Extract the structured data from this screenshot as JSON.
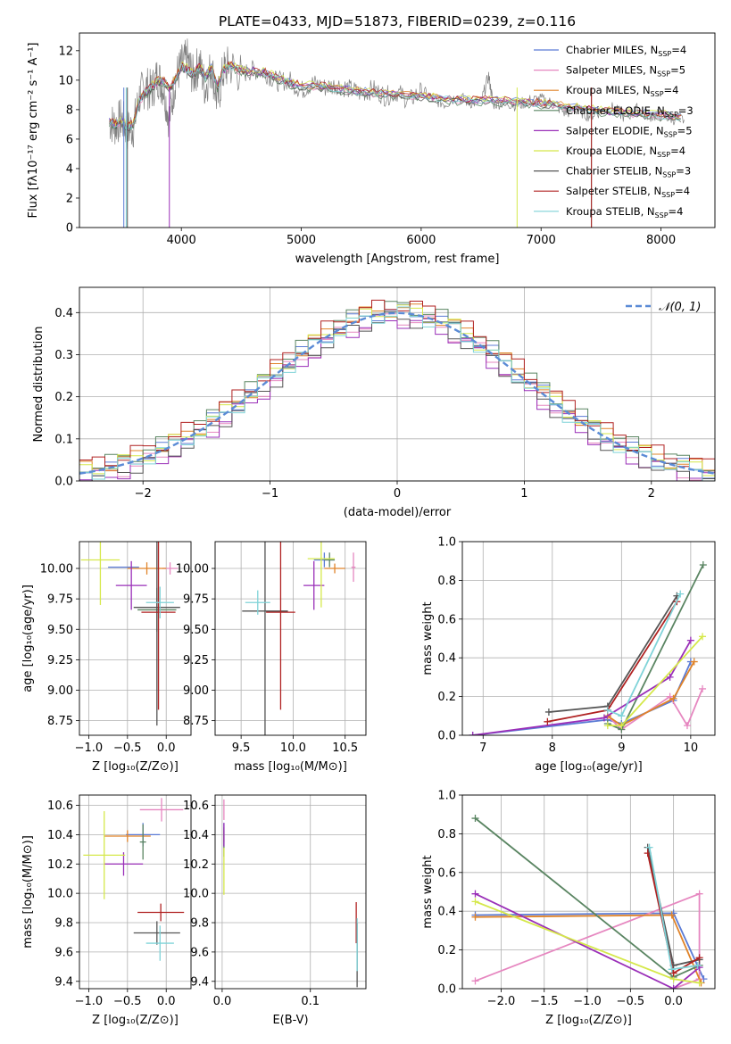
{
  "figure_title": "PLATE=0433, MJD=51873, FIBERID=0239, z=0.116",
  "chart_data": [
    {
      "id": "spectrum",
      "type": "line",
      "xlabel": "wavelength [Angstrom, rest frame]",
      "ylabel": "Flux [fλ10⁻¹⁷ erg cm⁻² s⁻¹ A⁻¹]",
      "xlim": [
        3150,
        8450
      ],
      "ylim": [
        0,
        13.2
      ],
      "xticks": [
        4000,
        5000,
        6000,
        7000,
        8000
      ],
      "yticks": [
        0,
        2,
        4,
        6,
        8,
        10,
        12
      ],
      "grid": false,
      "legend_position": "top-right",
      "observed": {
        "x": [
          3400,
          3450,
          3500,
          3550,
          3600,
          3650,
          3700,
          3750,
          3800,
          3850,
          3900,
          3950,
          4000,
          4050,
          4100,
          4150,
          4200,
          4250,
          4300,
          4350,
          4400,
          4500,
          4600,
          4700,
          4800,
          4900,
          5000,
          5100,
          5200,
          5300,
          5400,
          5500,
          5600,
          5700,
          5800,
          5900,
          6000,
          6100,
          6200,
          6300,
          6400,
          6500,
          6563,
          6600,
          6700,
          6800,
          6900,
          7000,
          7100,
          7200,
          7300,
          7400,
          7500,
          7600,
          7700,
          7800,
          7900,
          8000,
          8100,
          8200
        ],
        "y": [
          7.2,
          6.9,
          7.4,
          6.6,
          6.8,
          8.9,
          9.6,
          9.2,
          10.3,
          9.5,
          7.3,
          10.1,
          11.0,
          11.4,
          10.2,
          11.2,
          9.4,
          11.0,
          8.5,
          10.6,
          11.0,
          10.4,
          10.7,
          10.5,
          9.9,
          10.0,
          9.3,
          9.8,
          9.5,
          9.7,
          9.4,
          9.1,
          9.4,
          8.9,
          9.2,
          8.6,
          9.3,
          8.7,
          8.4,
          8.9,
          8.5,
          8.5,
          10.3,
          8.4,
          8.5,
          8.3,
          8.6,
          8.7,
          8.4,
          7.8,
          8.0,
          7.6,
          7.9,
          8.1,
          7.5,
          8.0,
          7.6,
          7.6,
          7.4,
          7.3
        ]
      },
      "model_smooth": {
        "x": [
          3400,
          3450,
          3500,
          3550,
          3600,
          3650,
          3700,
          3750,
          3800,
          3850,
          3900,
          3950,
          4000,
          4050,
          4100,
          4150,
          4200,
          4250,
          4300,
          4350,
          4400,
          4500,
          4600,
          4700,
          4800,
          4900,
          5000,
          5200,
          5400,
          5600,
          5800,
          6000,
          6200,
          6400,
          6600,
          6800,
          7000,
          7200,
          7400,
          7600,
          7800,
          8000,
          8200
        ],
        "y": [
          7.1,
          7.0,
          7.2,
          6.8,
          7.0,
          8.6,
          9.1,
          9.5,
          9.9,
          9.9,
          9.4,
          10.0,
          10.9,
          10.7,
          10.4,
          10.9,
          10.2,
          10.8,
          9.5,
          10.6,
          11.0,
          10.6,
          10.6,
          10.5,
          10.1,
          9.8,
          9.6,
          9.5,
          9.3,
          9.1,
          9.0,
          8.9,
          8.7,
          8.6,
          8.6,
          8.5,
          8.4,
          8.2,
          8.0,
          7.8,
          7.7,
          7.6,
          7.4
        ]
      },
      "model_offsets": [
        0.1,
        -0.05,
        0.08,
        -0.12,
        0.05,
        0.15,
        -0.08,
        0.12,
        0.0
      ],
      "model_cutoffs": [
        {
          "series": 0,
          "x": 3520
        },
        {
          "series": 1,
          "x": 7420
        },
        {
          "series": 3,
          "x": 7420
        },
        {
          "series": 4,
          "x": 3900
        },
        {
          "series": 5,
          "x": 6800
        },
        {
          "series": 6,
          "x": 3550
        },
        {
          "series": 7,
          "x": 7420
        },
        {
          "series": 8,
          "x": 3540
        }
      ]
    },
    {
      "id": "residual-histogram",
      "type": "bar",
      "xlabel": "(data-model)/error",
      "ylabel": "Normed distribution",
      "xlim": [
        -2.5,
        2.5
      ],
      "ylim": [
        0,
        0.46
      ],
      "xticks": [
        -2,
        -1,
        0,
        1,
        2
      ],
      "yticks": [
        0.0,
        0.1,
        0.2,
        0.3,
        0.4
      ],
      "grid": true,
      "legend_position": "top-right",
      "legend": "𝒩(0, 1)",
      "bin_width": 0.1,
      "series_offsets": [
        0.004,
        -0.012,
        0.009,
        0.015,
        -0.018,
        0.006,
        -0.014,
        0.019,
        -0.003
      ],
      "normal": {
        "mean": 0,
        "sigma": 1
      }
    },
    {
      "id": "age-vs-Z",
      "type": "scatter",
      "xlabel": "Z [log₁₀(Z/Z⊙)]",
      "ylabel": "age  [log₁₀(age/yr)]",
      "xlim": [
        -1.12,
        0.32
      ],
      "ylim": [
        8.63,
        10.22
      ],
      "xticks": [
        -1.0,
        -0.5,
        0.0
      ],
      "yticks": [
        8.75,
        9.0,
        9.25,
        9.5,
        9.75,
        10.0
      ],
      "grid": true,
      "points": [
        {
          "x": -0.55,
          "y": 10.01,
          "xerr": 0.2,
          "yerr": 0.0
        },
        {
          "x": 0.05,
          "y": 10.0,
          "xerr": 0.1,
          "yerr": 0.05
        },
        {
          "x": -0.25,
          "y": 10.0,
          "xerr": 0.25,
          "yerr": 0.05
        },
        {
          "x": -0.12,
          "y": 9.66,
          "xerr": 0.25,
          "yerr": 0.18
        },
        {
          "x": -0.45,
          "y": 9.86,
          "xerr": 0.2,
          "yerr": 0.2
        },
        {
          "x": -0.85,
          "y": 10.07,
          "xerr": 0.25,
          "yerr": 0.37
        },
        {
          "x": -0.12,
          "y": 9.68,
          "xerr": 0.3,
          "yerr": 0.97
        },
        {
          "x": -0.1,
          "y": 9.64,
          "xerr": 0.22,
          "yerr": 0.8
        },
        {
          "x": -0.08,
          "y": 9.72,
          "xerr": 0.18,
          "yerr": 0.13
        }
      ]
    },
    {
      "id": "age-vs-mass",
      "type": "scatter",
      "xlabel": "mass [log₁₀(M/M⊙)]",
      "ylabel": "",
      "xlim": [
        9.25,
        10.7
      ],
      "ylim": [
        8.63,
        10.22
      ],
      "xticks": [
        9.5,
        10.0,
        10.5
      ],
      "yticks": [
        8.75,
        9.0,
        9.25,
        9.5,
        9.75,
        10.0
      ],
      "grid": true,
      "points": [
        {
          "x": 10.3,
          "y": 10.07,
          "xerr": 0.1,
          "yerr": 0.06
        },
        {
          "x": 10.58,
          "y": 10.01,
          "xerr": 0.02,
          "yerr": 0.12
        },
        {
          "x": 10.4,
          "y": 10.0,
          "xerr": 0.1,
          "yerr": 0.04
        },
        {
          "x": 10.35,
          "y": 10.07,
          "xerr": 0.05,
          "yerr": 0.06
        },
        {
          "x": 10.2,
          "y": 9.86,
          "xerr": 0.1,
          "yerr": 0.2
        },
        {
          "x": 10.27,
          "y": 10.08,
          "xerr": 0.13,
          "yerr": 0.4
        },
        {
          "x": 9.73,
          "y": 9.65,
          "xerr": 0.22,
          "yerr": 1.1
        },
        {
          "x": 9.88,
          "y": 9.64,
          "xerr": 0.14,
          "yerr": 0.8
        },
        {
          "x": 9.66,
          "y": 9.72,
          "xerr": 0.12,
          "yerr": 0.1
        }
      ]
    },
    {
      "id": "weight-vs-age",
      "type": "line",
      "xlabel": "age  [log₁₀(age/yr)]",
      "ylabel": "mass weight",
      "xlim": [
        6.7,
        10.35
      ],
      "ylim": [
        0.0,
        1.0
      ],
      "xticks": [
        7,
        8,
        9,
        10
      ],
      "yticks": [
        0.0,
        0.2,
        0.4,
        0.6,
        0.8,
        1.0
      ],
      "grid": true,
      "series": [
        {
          "x": [
            6.85,
            8.8,
            9.0,
            9.75,
            10.0
          ],
          "y": [
            0.0,
            0.08,
            0.06,
            0.18,
            0.38
          ]
        },
        {
          "x": [
            8.8,
            9.0,
            9.7,
            9.95,
            10.17
          ],
          "y": [
            0.1,
            0.03,
            0.2,
            0.05,
            0.24
          ]
        },
        {
          "x": [
            8.8,
            9.0,
            9.75,
            10.05
          ],
          "y": [
            0.1,
            0.05,
            0.19,
            0.38
          ]
        },
        {
          "x": [
            8.8,
            9.0,
            10.18
          ],
          "y": [
            0.06,
            0.03,
            0.88
          ]
        },
        {
          "x": [
            6.85,
            8.75,
            9.7,
            10.0
          ],
          "y": [
            0.0,
            0.09,
            0.3,
            0.49
          ]
        },
        {
          "x": [
            8.8,
            9.0,
            10.17
          ],
          "y": [
            0.05,
            0.05,
            0.51
          ]
        },
        {
          "x": [
            7.95,
            8.8,
            9.8
          ],
          "y": [
            0.12,
            0.15,
            0.72
          ]
        },
        {
          "x": [
            7.93,
            8.8,
            9.8
          ],
          "y": [
            0.07,
            0.13,
            0.69
          ]
        },
        {
          "x": [
            8.8,
            9.0,
            9.85
          ],
          "y": [
            0.13,
            0.1,
            0.73
          ]
        }
      ]
    },
    {
      "id": "mass-vs-Z",
      "type": "scatter",
      "xlabel": "Z [log₁₀(Z/Z⊙)]",
      "ylabel": "mass [log₁₀(M/M⊙)]",
      "xlim": [
        -1.12,
        0.32
      ],
      "ylim": [
        9.35,
        10.67
      ],
      "xticks": [
        -1.0,
        -0.5,
        0.0
      ],
      "yticks": [
        9.4,
        9.6,
        9.8,
        10.0,
        10.2,
        10.4,
        10.6
      ],
      "grid": true,
      "points": [
        {
          "x": -0.3,
          "y": 10.4,
          "xerr": 0.22,
          "yerr": 0.08
        },
        {
          "x": -0.06,
          "y": 10.57,
          "xerr": 0.28,
          "yerr": 0.08
        },
        {
          "x": -0.5,
          "y": 10.39,
          "xerr": 0.3,
          "yerr": 0.04
        },
        {
          "x": -0.3,
          "y": 10.35,
          "xerr": 0.04,
          "yerr": 0.12
        },
        {
          "x": -0.55,
          "y": 10.2,
          "xerr": 0.25,
          "yerr": 0.08
        },
        {
          "x": -0.8,
          "y": 10.26,
          "xerr": 0.27,
          "yerr": 0.3
        },
        {
          "x": -0.12,
          "y": 9.73,
          "xerr": 0.3,
          "yerr": 0.08
        },
        {
          "x": -0.07,
          "y": 9.87,
          "xerr": 0.3,
          "yerr": 0.06
        },
        {
          "x": -0.08,
          "y": 9.66,
          "xerr": 0.18,
          "yerr": 0.12
        }
      ]
    },
    {
      "id": "mass-vs-EBV",
      "type": "scatter",
      "xlabel": "E(B-V)",
      "ylabel": "",
      "xlim": [
        -0.008,
        0.163
      ],
      "ylim": [
        9.35,
        10.67
      ],
      "xticks": [
        0.0,
        0.1
      ],
      "yticks": [
        9.4,
        9.6,
        9.8,
        10.0,
        10.2,
        10.4,
        10.6
      ],
      "grid": true,
      "points": [
        {
          "x": 0.002,
          "y": 10.4,
          "xerr": 0.0,
          "yerr": 0.08
        },
        {
          "x": 0.002,
          "y": 10.57,
          "xerr": 0.0,
          "yerr": 0.07
        },
        {
          "x": 0.002,
          "y": 10.39,
          "xerr": 0.0,
          "yerr": 0.04
        },
        {
          "x": 0.002,
          "y": 10.35,
          "xerr": 0.0,
          "yerr": 0.1
        },
        {
          "x": 0.002,
          "y": 10.4,
          "xerr": 0.0,
          "yerr": 0.08
        },
        {
          "x": 0.002,
          "y": 10.15,
          "xerr": 0.0,
          "yerr": 0.16
        },
        {
          "x": 0.153,
          "y": 9.58,
          "xerr": 0.0,
          "yerr": 0.22
        },
        {
          "x": 0.152,
          "y": 9.8,
          "xerr": 0.0,
          "yerr": 0.14
        },
        {
          "x": 0.153,
          "y": 9.65,
          "xerr": 0.0,
          "yerr": 0.18
        }
      ]
    },
    {
      "id": "weight-vs-Z",
      "type": "line",
      "xlabel": "Z [log₁₀(Z/Z⊙)]",
      "ylabel": "mass weight",
      "xlim": [
        -2.45,
        0.48
      ],
      "ylim": [
        0.0,
        1.0
      ],
      "xticks": [
        -2.0,
        -1.5,
        -1.0,
        -0.5,
        0.0
      ],
      "yticks": [
        0.0,
        0.2,
        0.4,
        0.6,
        0.8,
        1.0
      ],
      "grid": true,
      "series": [
        {
          "x": [
            -2.3,
            0.0,
            0.35
          ],
          "y": [
            0.38,
            0.39,
            0.05
          ]
        },
        {
          "x": [
            -2.3,
            0.3,
            0.3,
            0.0
          ],
          "y": [
            0.04,
            0.49,
            0.05,
            0.0
          ]
        },
        {
          "x": [
            -2.3,
            -0.02,
            0.32
          ],
          "y": [
            0.37,
            0.38,
            0.03
          ]
        },
        {
          "x": [
            -2.3,
            0.0,
            0.3
          ],
          "y": [
            0.88,
            0.06,
            0.12
          ]
        },
        {
          "x": [
            -2.3,
            0.0,
            0.3
          ],
          "y": [
            0.49,
            0.0,
            0.11
          ]
        },
        {
          "x": [
            -2.3,
            0.0,
            0.3
          ],
          "y": [
            0.45,
            0.05,
            0.03
          ]
        },
        {
          "x": [
            -0.3,
            0.0,
            0.3
          ],
          "y": [
            0.73,
            0.12,
            0.15
          ]
        },
        {
          "x": [
            -0.3,
            0.0,
            0.3
          ],
          "y": [
            0.7,
            0.08,
            0.16
          ]
        },
        {
          "x": [
            -0.28,
            -0.02,
            0.28
          ],
          "y": [
            0.73,
            0.1,
            0.12
          ]
        }
      ]
    }
  ],
  "legend": [
    {
      "label": "Chabrier MILES, N",
      "sub": "SSP",
      "suffix": "=4",
      "color": "#5b7bd5"
    },
    {
      "label": "Salpeter MILES, N",
      "sub": "SSP",
      "suffix": "=5",
      "color": "#e687c0"
    },
    {
      "label": "Kroupa MILES, N",
      "sub": "SSP",
      "suffix": "=4",
      "color": "#e0842a"
    },
    {
      "label": "Chabrier ELODIE, N",
      "sub": "SSP",
      "suffix": "=3",
      "color": "#5a8562"
    },
    {
      "label": "Salpeter ELODIE, N",
      "sub": "SSP",
      "suffix": "=5",
      "color": "#9a2fb8"
    },
    {
      "label": "Kroupa ELODIE, N",
      "sub": "SSP",
      "suffix": "=4",
      "color": "#d5e84a"
    },
    {
      "label": "Chabrier STELIB, N",
      "sub": "SSP",
      "suffix": "=3",
      "color": "#555555"
    },
    {
      "label": "Salpeter STELIB, N",
      "sub": "SSP",
      "suffix": "=4",
      "color": "#b02222"
    },
    {
      "label": "Kroupa STELIB, N",
      "sub": "SSP",
      "suffix": "=4",
      "color": "#7fd3d8"
    }
  ],
  "colors": {
    "observed": "#808080",
    "normal_curve": "#5b8bd6",
    "grid": "#b0b0b0"
  }
}
